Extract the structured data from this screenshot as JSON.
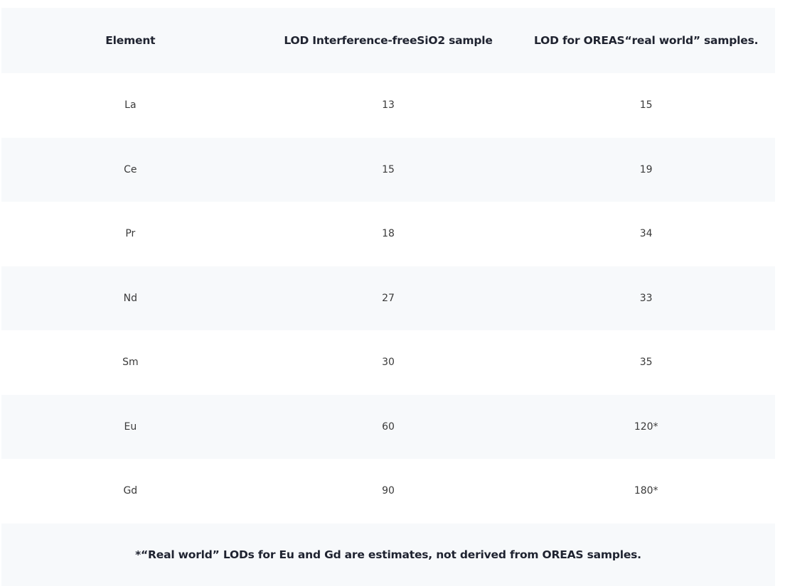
{
  "table": {
    "headers": [
      "Element",
      "LOD Interference-freeSiO2 sample",
      "LOD for OREAS“real world” samples."
    ],
    "rows": [
      [
        "La",
        "13",
        "15"
      ],
      [
        "Ce",
        "15",
        "19"
      ],
      [
        "Pr",
        "18",
        "34"
      ],
      [
        "Nd",
        "27",
        "33"
      ],
      [
        "Sm",
        "30",
        "35"
      ],
      [
        "Eu",
        "60",
        "120*"
      ],
      [
        "Gd",
        "90",
        "180*"
      ]
    ],
    "footnote": "*“Real world” LODs for Eu and Gd are estimates, not derived from OREAS samples."
  }
}
